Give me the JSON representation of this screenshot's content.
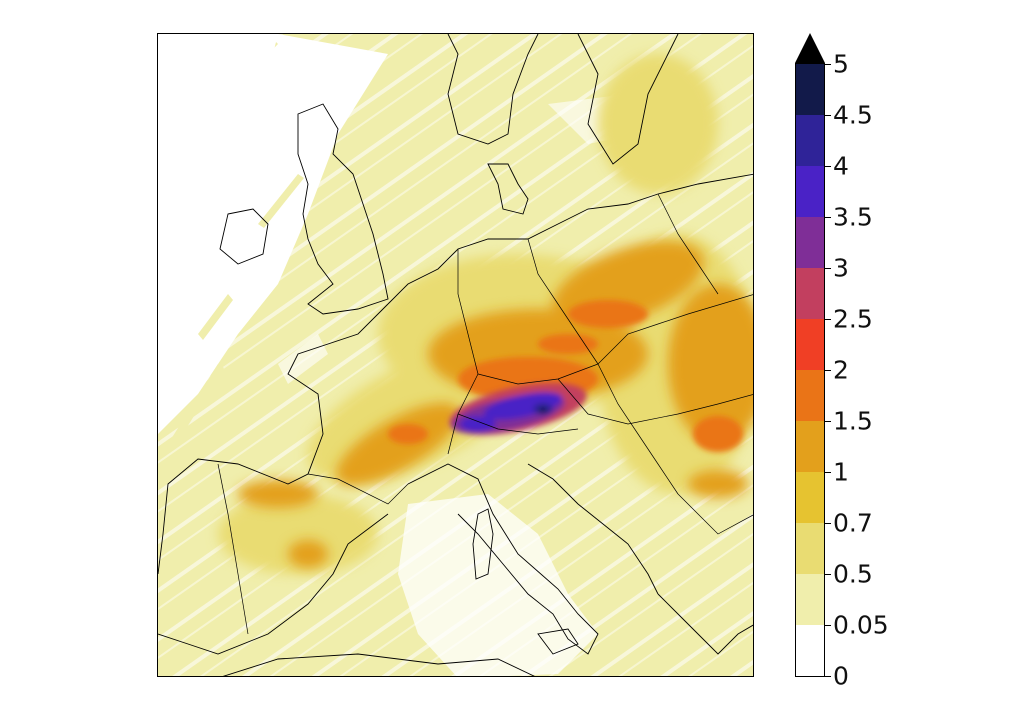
{
  "colorbar": {
    "extend": "max",
    "arrow_color": "#000000",
    "levels": [
      {
        "label": "0",
        "color": "#ffffff"
      },
      {
        "label": "0.05",
        "color": "#f0eeac"
      },
      {
        "label": "0.5",
        "color": "#e9dc72"
      },
      {
        "label": "0.7",
        "color": "#e6c330"
      },
      {
        "label": "1",
        "color": "#e3a01c"
      },
      {
        "label": "1.5",
        "color": "#ea7417"
      },
      {
        "label": "2",
        "color": "#f03f25"
      },
      {
        "label": "2.5",
        "color": "#c23f5f"
      },
      {
        "label": "3",
        "color": "#7f2e97"
      },
      {
        "label": "3.5",
        "color": "#4a22c6"
      },
      {
        "label": "4",
        "color": "#2f2398"
      },
      {
        "label": "4.5",
        "color": "#121a4a"
      },
      {
        "label": "5",
        "color": null
      }
    ]
  },
  "map": {
    "coastline_color": "#000000",
    "background": "#ffffff"
  }
}
